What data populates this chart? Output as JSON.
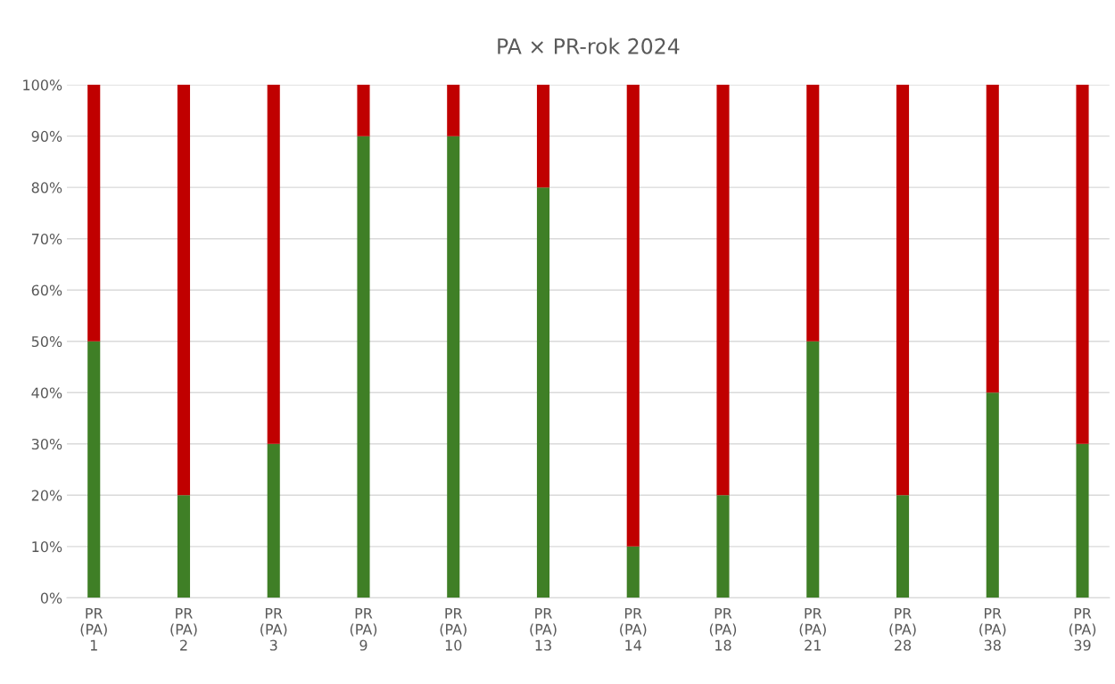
{
  "chart_data": {
    "type": "bar",
    "title": "PA × PR-rok 2024",
    "stacked": true,
    "categories": [
      "PR\n(PA)\n1",
      "PR\n(PA)\n2",
      "PR\n(PA)\n3",
      "PR\n(PA)\n9",
      "PR\n(PA)\n10",
      "PR\n(PA)\n13",
      "PR\n(PA)\n14",
      "PR\n(PA)\n18",
      "PR\n(PA)\n21",
      "PR\n(PA)\n28",
      "PR\n(PA)\n38",
      "PR\n(PA)\n39"
    ],
    "series": [
      {
        "color": "#3f7f26",
        "values": [
          50,
          20,
          30,
          90,
          90,
          80,
          10,
          20,
          50,
          20,
          40,
          30
        ]
      },
      {
        "color": "#c00000",
        "values": [
          50,
          80,
          70,
          10,
          10,
          20,
          90,
          80,
          50,
          80,
          60,
          70
        ]
      }
    ],
    "ylim": [
      0,
      100
    ],
    "yticks": [
      {
        "value": 0,
        "label": "0%"
      },
      {
        "value": 10,
        "label": "10%"
      },
      {
        "value": 20,
        "label": "20%"
      },
      {
        "value": 30,
        "label": "30%"
      },
      {
        "value": 40,
        "label": "40%"
      },
      {
        "value": 50,
        "label": "50%"
      },
      {
        "value": 60,
        "label": "60%"
      },
      {
        "value": 70,
        "label": "70%"
      },
      {
        "value": 80,
        "label": "80%"
      },
      {
        "value": 90,
        "label": "90%"
      },
      {
        "value": 100,
        "label": "100%"
      }
    ],
    "grid": "y",
    "legend": false
  }
}
